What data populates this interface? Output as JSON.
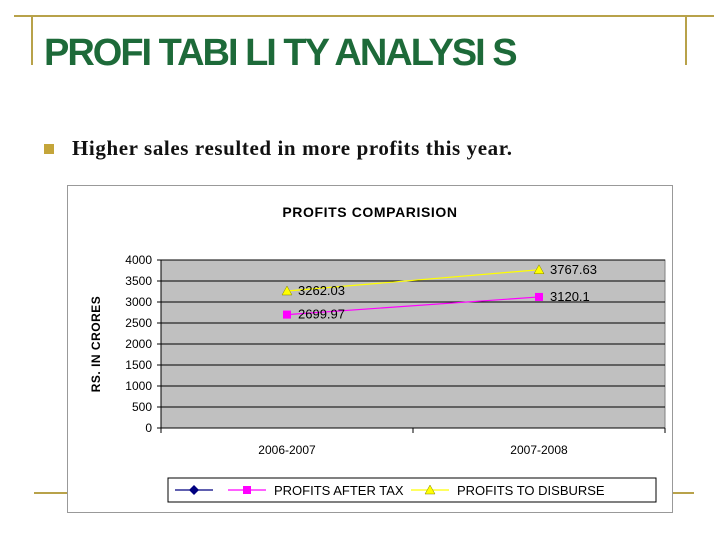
{
  "slide": {
    "title": "PROFI TABI LI TY ANALYSI S",
    "bullet": "Higher sales resulted in more profits this year."
  },
  "colors": {
    "title": "#1d6a39",
    "accent": "#b8a24a",
    "plot_bg": "#c0c0c0",
    "series": [
      "#000080",
      "#ff00ff",
      "#ffff00"
    ]
  },
  "chart_data": {
    "type": "line",
    "title": "PROFITS COMPARISION",
    "ylabel": "RS. IN CRORES",
    "xlabel": "",
    "categories": [
      "2006-2007",
      "2007-2008"
    ],
    "ylim": [
      0,
      4000
    ],
    "yticks": [
      0,
      500,
      1000,
      1500,
      2000,
      2500,
      3000,
      3500,
      4000
    ],
    "grid": true,
    "legend_position": "bottom",
    "series": [
      {
        "name": "",
        "values": [
          null,
          null
        ],
        "marker": "diamond",
        "color": "#000080",
        "labels": []
      },
      {
        "name": "PROFITS AFTER TAX",
        "values": [
          2699.97,
          3120.1
        ],
        "marker": "square",
        "color": "#ff00ff",
        "labels": [
          "2699.97",
          "3120.1"
        ]
      },
      {
        "name": "PROFITS TO DISBURSE",
        "values": [
          3262.03,
          3767.63
        ],
        "marker": "triangle",
        "color": "#ffff00",
        "labels": [
          "3262.03",
          "3767.63"
        ]
      }
    ]
  }
}
